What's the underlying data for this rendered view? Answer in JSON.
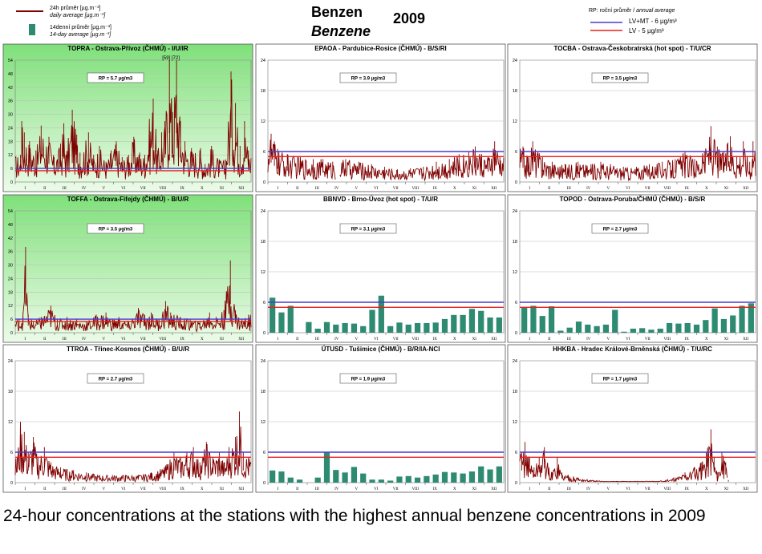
{
  "header": {
    "title_cz": "Benzen",
    "title_en": "Benzene",
    "year": "2009",
    "legend_daily_cz": "24h průměr [µg.m⁻³]",
    "legend_daily_en": "daily average [µg.m⁻³]",
    "legend_14d_cz": "14denní průměr [µg.m⁻³]",
    "legend_14d_en": "14-day average [µg.m⁻³]",
    "rp_cz": "RP: roční průměr / ",
    "rp_en": "annual average",
    "lv_mt_label": "LV+MT  -  6 µg/m³",
    "lv_label": "LV  -  5 µg/m³"
  },
  "caption": "24-hour concentrations at the stations with the highest annual benzene concentrations in 2009",
  "colors": {
    "daily_line": "#800000",
    "bar": "#2e8b72",
    "lv_mt_line": "#4b3cd1",
    "lv_line": "#e8201c",
    "green_top": "#7fe07a",
    "green_bottom": "#ecfbe9",
    "plot_bg": "#ffffff"
  },
  "months": [
    "I",
    "II",
    "III",
    "IV",
    "V",
    "VI",
    "VII",
    "VIII",
    "IX",
    "X",
    "XI",
    "XII"
  ],
  "chart_data": [
    {
      "type": "line",
      "title": "TOPRA - Ostrava-Přívoz (ČHMÚ) - I/U/IR",
      "rp": "RP = 5.7 µg/m3",
      "green": true,
      "ylim": [
        0,
        54
      ],
      "yticks": [
        0,
        6,
        12,
        18,
        24,
        30,
        36,
        42,
        48,
        54
      ],
      "annotation": "[59] [72]",
      "peaks": [
        [
          8,
          12
        ],
        [
          10,
          27
        ],
        [
          14,
          22
        ],
        [
          22,
          18
        ],
        [
          32,
          14
        ],
        [
          40,
          25
        ],
        [
          52,
          20
        ],
        [
          60,
          11
        ],
        [
          70,
          17
        ],
        [
          75,
          26
        ],
        [
          78,
          12
        ],
        [
          88,
          32
        ],
        [
          95,
          21
        ],
        [
          100,
          13
        ],
        [
          113,
          22
        ],
        [
          121,
          12
        ],
        [
          130,
          16
        ],
        [
          140,
          9
        ],
        [
          148,
          14
        ],
        [
          156,
          18
        ],
        [
          165,
          11
        ],
        [
          175,
          12
        ],
        [
          183,
          20
        ],
        [
          192,
          13
        ],
        [
          200,
          12
        ],
        [
          207,
          28
        ],
        [
          213,
          37
        ],
        [
          220,
          14
        ],
        [
          226,
          22
        ],
        [
          231,
          27
        ],
        [
          238,
          54
        ],
        [
          243,
          31
        ],
        [
          249,
          54
        ],
        [
          255,
          27
        ],
        [
          262,
          18
        ],
        [
          272,
          15
        ],
        [
          286,
          15
        ],
        [
          293,
          8
        ],
        [
          303,
          16
        ],
        [
          315,
          10
        ],
        [
          325,
          10
        ],
        [
          333,
          49
        ],
        [
          340,
          35
        ],
        [
          347,
          16
        ],
        [
          354,
          27
        ],
        [
          360,
          14
        ]
      ],
      "lv": true
    },
    {
      "type": "line",
      "title": "EPAOA - Pardubice-Rosice (ČHMÚ) - B/S/RI",
      "rp": "RP = 3.9 µg/m3",
      "green": false,
      "ylim": [
        0,
        24
      ],
      "yticks": [
        0,
        6,
        12,
        18,
        24
      ],
      "peaks": [
        [
          5,
          9.5
        ],
        [
          10,
          8
        ],
        [
          15,
          6.5
        ],
        [
          30,
          5.5
        ],
        [
          50,
          5
        ],
        [
          70,
          4.5
        ],
        [
          85,
          4.5
        ],
        [
          100,
          4
        ],
        [
          120,
          4.5
        ],
        [
          140,
          4
        ],
        [
          160,
          3.5
        ],
        [
          180,
          3
        ],
        [
          200,
          2.5
        ],
        [
          220,
          2.7
        ],
        [
          240,
          3
        ],
        [
          260,
          4
        ],
        [
          280,
          4.5
        ],
        [
          295,
          5.5
        ],
        [
          310,
          6
        ],
        [
          320,
          7
        ],
        [
          330,
          5.5
        ],
        [
          340,
          5
        ],
        [
          350,
          8
        ],
        [
          358,
          5
        ]
      ],
      "lv": true,
      "gaps": [
        [
          105,
          110
        ]
      ]
    },
    {
      "type": "line",
      "title": "TOCBA - Ostrava-Českobratrská (hot spot) - T/U/CR",
      "rp": "RP = 3.5 µg/m3",
      "green": false,
      "ylim": [
        0,
        24
      ],
      "yticks": [
        0,
        6,
        12,
        18,
        24
      ],
      "peaks": [
        [
          5,
          7
        ],
        [
          12,
          5
        ],
        [
          20,
          8
        ],
        [
          35,
          5
        ],
        [
          50,
          4
        ],
        [
          70,
          3.5
        ],
        [
          90,
          4
        ],
        [
          110,
          3.5
        ],
        [
          125,
          4
        ],
        [
          140,
          3.5
        ],
        [
          160,
          3
        ],
        [
          180,
          3
        ],
        [
          200,
          3.5
        ],
        [
          220,
          4
        ],
        [
          240,
          4.5
        ],
        [
          255,
          6
        ],
        [
          270,
          4.5
        ],
        [
          285,
          6
        ],
        [
          295,
          11
        ],
        [
          305,
          7
        ],
        [
          315,
          6
        ],
        [
          325,
          9
        ],
        [
          335,
          5
        ],
        [
          345,
          8
        ],
        [
          355,
          4
        ],
        [
          360,
          8
        ]
      ],
      "lv": true
    },
    {
      "type": "line",
      "title": "TOFFA - Ostrava-Fifejdy (ČHMÚ) - B/U/R",
      "rp": "RP = 3.5 µg/m3",
      "green": true,
      "ylim": [
        0,
        54
      ],
      "yticks": [
        0,
        6,
        12,
        18,
        24,
        30,
        36,
        42,
        48,
        54
      ],
      "peaks": [
        [
          6,
          6
        ],
        [
          12,
          9
        ],
        [
          16,
          38
        ],
        [
          20,
          8
        ],
        [
          28,
          5
        ],
        [
          40,
          7
        ],
        [
          55,
          12
        ],
        [
          65,
          6
        ],
        [
          80,
          7
        ],
        [
          95,
          6
        ],
        [
          110,
          5
        ],
        [
          125,
          8
        ],
        [
          140,
          9
        ],
        [
          150,
          6
        ],
        [
          160,
          7
        ],
        [
          175,
          5
        ],
        [
          190,
          11
        ],
        [
          200,
          8
        ],
        [
          210,
          9
        ],
        [
          222,
          6
        ],
        [
          232,
          14
        ],
        [
          240,
          9
        ],
        [
          255,
          7
        ],
        [
          270,
          6
        ],
        [
          285,
          5
        ],
        [
          300,
          9
        ],
        [
          310,
          7
        ],
        [
          322,
          10
        ],
        [
          332,
          32
        ],
        [
          340,
          10
        ],
        [
          350,
          6
        ],
        [
          360,
          8
        ]
      ],
      "lv": true
    },
    {
      "type": "bar",
      "title": "BBNVD - Brno-Úvoz (hot spot) - T/U/R",
      "rp": "RP = 3.1 µg/m3",
      "green": false,
      "ylim": [
        0,
        24
      ],
      "yticks": [
        0,
        6,
        12,
        18,
        24
      ],
      "values": [
        6.9,
        4.0,
        5.3,
        0,
        2.1,
        0.8,
        2.1,
        1.6,
        1.9,
        1.8,
        1.3,
        4.5,
        7.3,
        1.3,
        2.0,
        1.6,
        1.9,
        1.9,
        2.0,
        2.7,
        3.5,
        3.5,
        4.7,
        4.3,
        3.0,
        3.0
      ],
      "lv": true
    },
    {
      "type": "bar",
      "title": "TOPOD - Ostrava-Poruba/ČHMÚ (ČHMÚ) - B/S/R",
      "rp": "RP = 2.7 µg/m3",
      "green": false,
      "ylim": [
        0,
        24
      ],
      "yticks": [
        0,
        6,
        12,
        18,
        24
      ],
      "values": [
        5.0,
        5.3,
        3.3,
        5.2,
        0.4,
        1.0,
        2.2,
        1.6,
        1.3,
        1.6,
        4.5,
        0.2,
        0.8,
        0.9,
        0.6,
        0.8,
        1.9,
        1.8,
        1.9,
        1.6,
        2.5,
        4.8,
        2.7,
        3.4,
        5.3,
        5.8
      ],
      "lv": true
    },
    {
      "type": "line",
      "title": "TTROA - Třinec-Kosmos (ČHMÚ) - B/U/R",
      "rp": "RP = 2.7 µg/m3",
      "green": false,
      "ylim": [
        0,
        24
      ],
      "yticks": [
        0,
        6,
        12,
        18,
        24
      ],
      "peaks": [
        [
          3,
          5
        ],
        [
          8,
          12
        ],
        [
          14,
          10
        ],
        [
          20,
          6
        ],
        [
          28,
          9
        ],
        [
          35,
          5
        ],
        [
          45,
          7
        ],
        [
          55,
          4
        ],
        [
          70,
          3
        ],
        [
          90,
          2.5
        ],
        [
          110,
          2
        ],
        [
          130,
          1.5
        ],
        [
          150,
          1.5
        ],
        [
          170,
          1.5
        ],
        [
          190,
          1.5
        ],
        [
          210,
          2
        ],
        [
          230,
          3
        ],
        [
          245,
          6
        ],
        [
          255,
          5
        ],
        [
          265,
          6
        ],
        [
          275,
          7
        ],
        [
          285,
          4
        ],
        [
          295,
          8
        ],
        [
          305,
          5
        ],
        [
          315,
          6
        ],
        [
          323,
          4
        ],
        [
          330,
          7
        ],
        [
          340,
          9
        ],
        [
          346,
          14
        ],
        [
          352,
          6
        ],
        [
          360,
          5
        ]
      ],
      "lv": true
    },
    {
      "type": "bar",
      "title": "ÚTUSD - Tušimice (ČHMÚ) - B/R/IA-NCI",
      "rp": "RP = 1.9 µg/m3",
      "green": false,
      "ylim": [
        0,
        24
      ],
      "yticks": [
        0,
        6,
        12,
        18,
        24
      ],
      "values": [
        2.4,
        2.2,
        1.0,
        0.6,
        0,
        1.0,
        6.0,
        2.5,
        2.0,
        3.1,
        1.8,
        0.6,
        0.6,
        0.4,
        1.2,
        1.3,
        1.0,
        1.3,
        1.6,
        2.1,
        2.0,
        1.8,
        2.2,
        3.2,
        2.6,
        3.2
      ],
      "lv": true
    },
    {
      "type": "line",
      "title": "HHKBA - Hradec Králové-Brněnská (ČHMÚ) - T/U/RC",
      "rp": "RP = 1.7 µg/m3",
      "green": false,
      "ylim": [
        0,
        24
      ],
      "yticks": [
        0,
        6,
        12,
        18,
        24
      ],
      "peaks": [
        [
          3,
          6
        ],
        [
          8,
          8
        ],
        [
          15,
          5
        ],
        [
          22,
          3
        ],
        [
          30,
          5
        ],
        [
          38,
          7
        ],
        [
          45,
          3
        ],
        [
          50,
          2
        ],
        [
          58,
          5
        ],
        [
          65,
          2
        ],
        [
          75,
          1.5
        ],
        [
          90,
          1
        ],
        [
          110,
          0.5
        ],
        [
          130,
          0.3
        ],
        [
          150,
          0.3
        ],
        [
          170,
          0.3
        ],
        [
          190,
          0.3
        ],
        [
          210,
          0.3
        ],
        [
          225,
          0.5
        ],
        [
          240,
          1
        ],
        [
          255,
          2
        ],
        [
          270,
          3
        ],
        [
          280,
          4
        ],
        [
          288,
          6
        ],
        [
          295,
          10.5
        ],
        [
          300,
          5
        ],
        [
          305,
          2
        ],
        [
          312,
          6
        ],
        [
          318,
          4
        ],
        [
          322,
          0.5
        ],
        [
          330,
          0
        ],
        [
          340,
          0
        ],
        [
          350,
          0
        ],
        [
          360,
          0
        ]
      ],
      "lv": true,
      "gaps": [
        [
          321,
          363
        ]
      ]
    }
  ]
}
